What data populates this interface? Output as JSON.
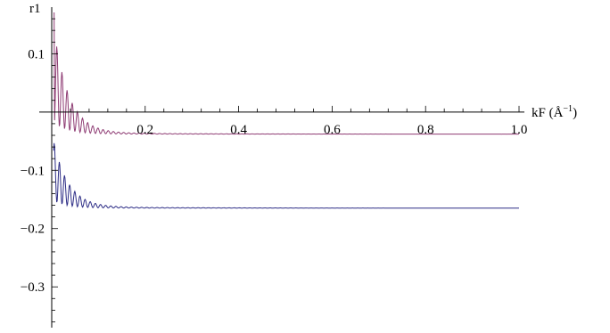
{
  "chart_data": {
    "type": "line",
    "ylabel": "r1",
    "xlabel": "kF (Å⁻¹)",
    "xlabel_main": "kF (Å",
    "xlabel_sup": "−1",
    "xlabel_close": ")",
    "xlim": [
      0,
      1.0
    ],
    "ylim": [
      -0.37,
      0.18
    ],
    "x_ticks": [
      {
        "value": 0.2,
        "label": "0.2"
      },
      {
        "value": 0.4,
        "label": "0.4"
      },
      {
        "value": 0.6,
        "label": "0.6"
      },
      {
        "value": 0.8,
        "label": "0.8"
      },
      {
        "value": 1.0,
        "label": "1.0"
      }
    ],
    "y_ticks": [
      {
        "value": 0.1,
        "label": "0.1"
      },
      {
        "value": -0.1,
        "label": "−0.1"
      },
      {
        "value": -0.2,
        "label": "−0.2"
      },
      {
        "value": -0.3,
        "label": "−0.3"
      }
    ],
    "grid": false,
    "legend": "none",
    "series": [
      {
        "color": "#8e3b73",
        "asymptote": -0.038,
        "x": [
          0.005,
          0.01,
          0.015,
          0.02,
          0.025,
          0.03,
          0.04,
          0.05,
          0.06,
          0.08,
          0.1,
          0.15,
          0.2,
          0.3,
          0.5,
          0.7,
          1.0
        ],
        "values": [
          0.17,
          0.02,
          0.035,
          -0.01,
          0.015,
          -0.02,
          -0.025,
          -0.03,
          -0.032,
          -0.035,
          -0.036,
          -0.037,
          -0.037,
          -0.038,
          -0.038,
          -0.038,
          -0.038
        ]
      },
      {
        "color": "#2d2d86",
        "asymptote": -0.165,
        "x": [
          0.005,
          0.01,
          0.015,
          0.02,
          0.025,
          0.03,
          0.04,
          0.05,
          0.06,
          0.08,
          0.1,
          0.15,
          0.2,
          0.3,
          0.5,
          0.7,
          1.0
        ],
        "values": [
          -0.05,
          -0.09,
          -0.045,
          -0.12,
          -0.095,
          -0.135,
          -0.145,
          -0.15,
          -0.155,
          -0.158,
          -0.16,
          -0.162,
          -0.163,
          -0.164,
          -0.165,
          -0.165,
          -0.165
        ]
      }
    ]
  }
}
